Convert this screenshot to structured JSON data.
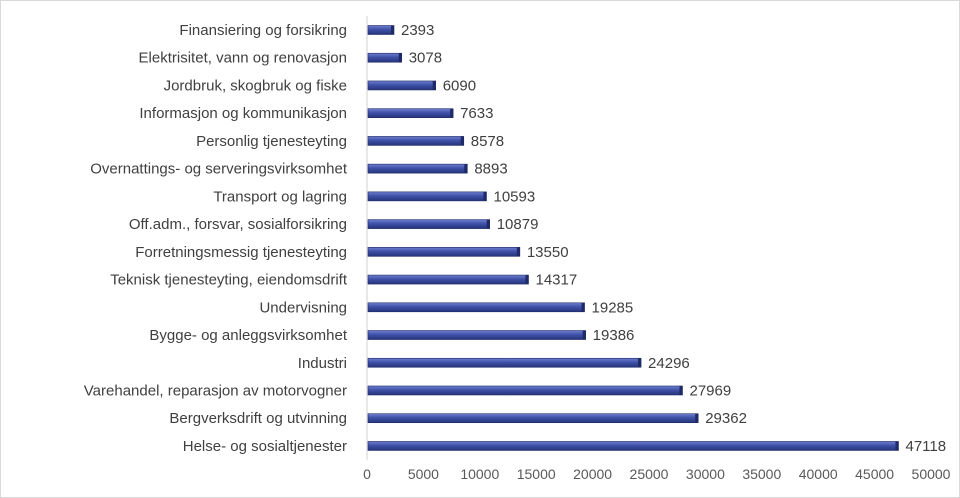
{
  "chart_data": {
    "type": "bar",
    "orientation": "horizontal",
    "categories": [
      "Finansiering og forsikring",
      "Elektrisitet, vann og renovasjon",
      "Jordbruk, skogbruk og fiske",
      "Informasjon og kommunikasjon",
      "Personlig tjenesteyting",
      "Overnattings- og serveringsvirksomhet",
      "Transport og lagring",
      "Off.adm., forsvar, sosialforsikring",
      "Forretningsmessig tjenesteyting",
      "Teknisk tjenesteyting, eiendomsdrift",
      "Undervisning",
      "Bygge- og anleggsvirksomhet",
      "Industri",
      "Varehandel, reparasjon av motorvogner",
      "Bergverksdrift og utvinning",
      "Helse- og sosialtjenester"
    ],
    "values": [
      2393,
      3078,
      6090,
      7633,
      8578,
      8893,
      10593,
      10879,
      13550,
      14317,
      19285,
      19386,
      24296,
      27969,
      29362,
      47118
    ],
    "value_labels": [
      "2393",
      "3078",
      "6090",
      "7633",
      "8578",
      "8893",
      "10593",
      "10879",
      "13550",
      "14317",
      "19285",
      "19386",
      "24296",
      "27969",
      "29362",
      "47118"
    ],
    "title": "",
    "xlabel": "",
    "ylabel": "",
    "xlim": [
      0,
      50000
    ],
    "x_ticks": [
      0,
      5000,
      10000,
      15000,
      20000,
      25000,
      30000,
      35000,
      40000,
      45000,
      50000
    ],
    "x_tick_labels": [
      "0",
      "5000",
      "10000",
      "15000",
      "20000",
      "25000",
      "30000",
      "35000",
      "40000",
      "45000",
      "50000"
    ],
    "grid": false,
    "legend": "none",
    "bar_color": "#3f51a8",
    "bar_edge_color": "#1f2a66"
  }
}
